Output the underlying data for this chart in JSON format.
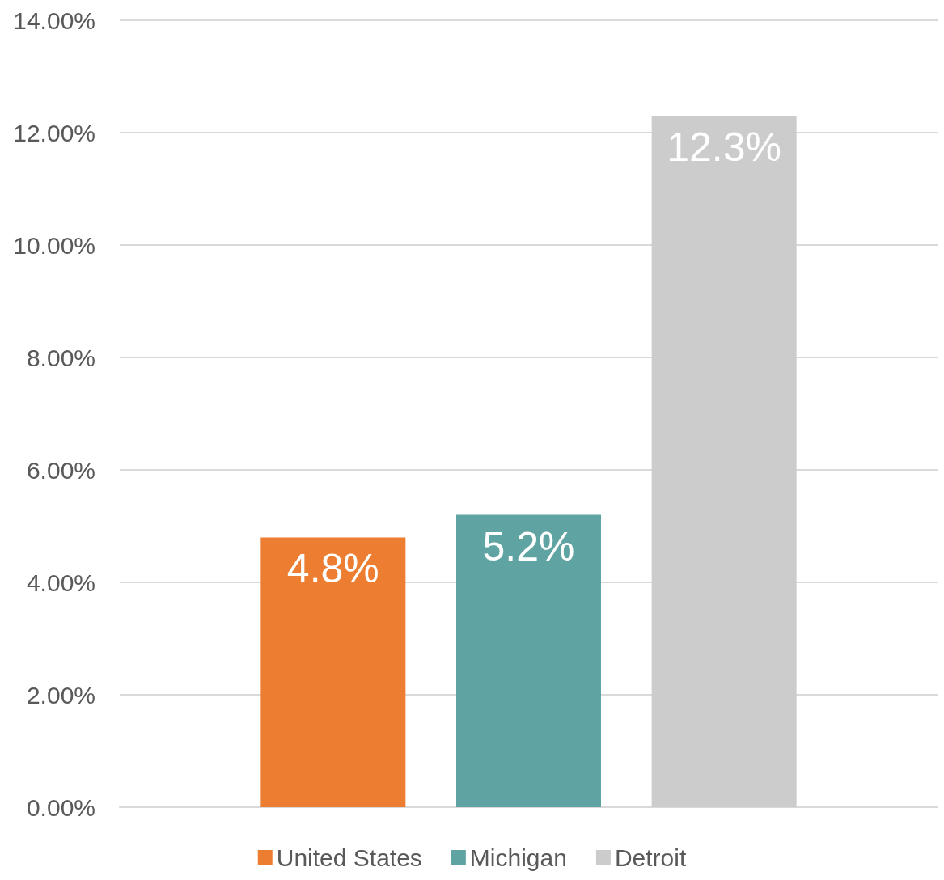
{
  "chart_data": {
    "type": "bar",
    "categories": [
      null
    ],
    "series": [
      {
        "name": "United States",
        "color": "#ed7d31",
        "values": [
          4.8
        ],
        "value_labels": [
          "4.8%"
        ]
      },
      {
        "name": "Michigan",
        "color": "#5fa3a3",
        "values": [
          5.2
        ],
        "value_labels": [
          "5.2%"
        ]
      },
      {
        "name": "Detroit",
        "color": "#cccccc",
        "values": [
          12.3
        ],
        "value_labels": [
          "12.3%"
        ]
      }
    ],
    "ylim": [
      0,
      14
    ],
    "yticks": [
      {
        "value": 0,
        "label": "0.00%"
      },
      {
        "value": 2,
        "label": "2.00%"
      },
      {
        "value": 4,
        "label": "4.00%"
      },
      {
        "value": 6,
        "label": "6.00%"
      },
      {
        "value": 8,
        "label": "8.00%"
      },
      {
        "value": 10,
        "label": "10.00%"
      },
      {
        "value": 12,
        "label": "12.00%"
      },
      {
        "value": 14,
        "label": "14.00%"
      }
    ],
    "grid": "y",
    "legend": "bottom"
  }
}
